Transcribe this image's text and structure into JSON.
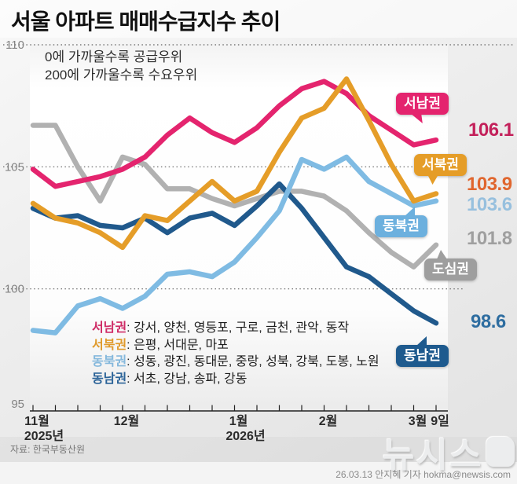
{
  "header": {
    "title": "서울 아파트 매매수급지수 추이"
  },
  "annotation": {
    "line1": "0에 가까울수록 공급우위",
    "line2": "200에 가까울수록 수요우위"
  },
  "chart_data": {
    "type": "line",
    "title": "서울 아파트 매매수급지수 추이",
    "ylim": [
      95,
      110
    ],
    "grid": "dotted horizontal",
    "yticks": [
      {
        "label": "110",
        "value": 110
      },
      {
        "label": "105",
        "value": 105
      },
      {
        "label": "100",
        "value": 100
      },
      {
        "label": "95",
        "value": 95
      }
    ],
    "gridline_values": [
      110,
      105,
      100
    ],
    "x_tick_count": 19,
    "month_labels": [
      {
        "text": "11월",
        "tick": 0
      },
      {
        "text": "12월",
        "tick": 4
      },
      {
        "text": "1월",
        "tick": 9
      },
      {
        "text": "2월",
        "tick": 13
      },
      {
        "text": "3월",
        "tick": 17
      },
      {
        "text": "9일",
        "tick": 18
      }
    ],
    "year_labels": [
      {
        "text": "2025년",
        "tick": 0
      },
      {
        "text": "2026년",
        "tick": 9
      }
    ],
    "series": [
      {
        "key": "dosim",
        "name": "도심권",
        "color": "#b1b1b1",
        "values": [
          106.7,
          106.7,
          105.0,
          103.6,
          105.4,
          105.1,
          104.1,
          104.1,
          103.7,
          103.4,
          103.7,
          104.0,
          104.0,
          103.8,
          103.2,
          102.3,
          101.5,
          100.9,
          101.8
        ]
      },
      {
        "key": "dongnam",
        "name": "동남권",
        "color": "#20598c",
        "values": [
          103.3,
          102.9,
          103.0,
          102.6,
          102.5,
          102.9,
          102.3,
          102.9,
          103.1,
          102.6,
          103.4,
          104.3,
          103.3,
          102.1,
          100.9,
          100.5,
          99.8,
          99.1,
          98.6
        ]
      },
      {
        "key": "dongbuk",
        "name": "동북권",
        "color": "#7fbbe3",
        "values": [
          98.3,
          98.2,
          99.3,
          99.6,
          99.2,
          99.7,
          100.6,
          100.7,
          100.5,
          101.1,
          102.1,
          103.2,
          105.3,
          104.9,
          105.4,
          104.4,
          103.9,
          103.4,
          103.6
        ]
      },
      {
        "key": "seonam",
        "name": "서남권",
        "color": "#e4246e",
        "values": [
          104.9,
          104.2,
          104.4,
          104.6,
          104.9,
          105.4,
          106.3,
          107.0,
          106.4,
          106.0,
          106.6,
          107.5,
          108.2,
          108.5,
          108.0,
          107.1,
          106.5,
          105.9,
          106.1
        ]
      },
      {
        "key": "seobuk",
        "name": "서북권",
        "color": "#e59d28",
        "values": [
          103.5,
          102.9,
          102.7,
          102.3,
          101.7,
          103.0,
          102.8,
          103.6,
          104.4,
          103.6,
          104.0,
          105.6,
          107.0,
          107.4,
          108.6,
          106.9,
          105.1,
          103.6,
          103.9
        ]
      }
    ]
  },
  "callouts": [
    {
      "region": "서남권",
      "value": "106.1",
      "badge_color": "#e4246e",
      "value_color": "#c3205a"
    },
    {
      "region": "서북권",
      "value": "103.9",
      "badge_color": "#e59d28",
      "value_color": "#e0662e"
    },
    {
      "region": "동북권",
      "value": "103.6",
      "badge_color": "#6cb0de",
      "value_color": "#97c0de"
    },
    {
      "region": "도심권",
      "value": "101.8",
      "badge_color": "#9e9e9e",
      "value_color": "#9f9f9f"
    },
    {
      "region": "동남권",
      "value": "98.6",
      "badge_color": "#1e5a8e",
      "value_color": "#2e6da0"
    }
  ],
  "legend": {
    "separator": ": ",
    "rows": [
      {
        "name": "서남권",
        "color": "#cf2b66",
        "districts": "강서, 양천, 영등포, 구로, 금천, 관악, 동작"
      },
      {
        "name": "서북권",
        "color": "#e09b2d",
        "districts": "은평, 서대문, 마포"
      },
      {
        "name": "동북권",
        "color": "#85b8dc",
        "districts": "성동, 광진, 동대문, 중랑, 성북, 강북, 도봉, 노원"
      },
      {
        "name": "동남권",
        "color": "#2b6398",
        "districts": "서초, 강남, 송파, 강동"
      }
    ]
  },
  "footer": {
    "source": "자료: 한국부동산원",
    "credit": "26.03.13 안지혜 기자 hokma@newsis.com",
    "watermark": "뉴시스"
  }
}
